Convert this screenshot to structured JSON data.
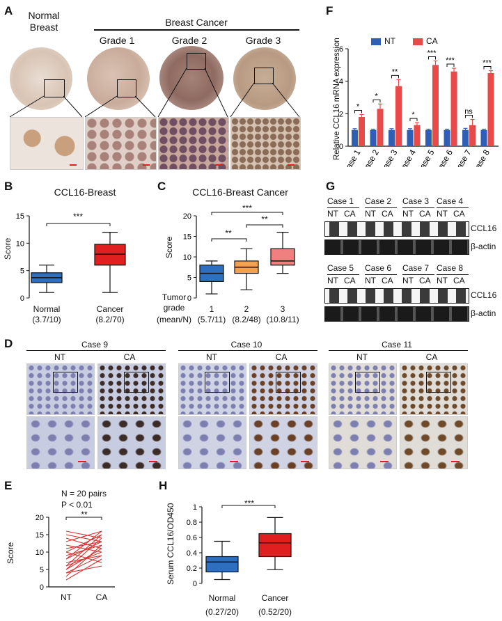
{
  "panels": {
    "A": "A",
    "B": "B",
    "C": "C",
    "D": "D",
    "E": "E",
    "F": "F",
    "G": "G",
    "H": "H"
  },
  "panelA": {
    "normal_label_1": "Normal",
    "normal_label_2": "Breast",
    "group_label": "Breast Cancer",
    "grades": [
      "Grade 1",
      "Grade 2",
      "Grade 3"
    ]
  },
  "panelB": {
    "title": "CCL16-Breast",
    "ylabel": "Score",
    "sig": "***",
    "groups": [
      {
        "name": "Normal",
        "sub": "(3.7/10)"
      },
      {
        "name": "Cancer",
        "sub": "(8.2/70)"
      }
    ]
  },
  "panelC": {
    "title": "CCL16-Breast Cancer",
    "ylabel": "Score",
    "row_label_1": "Tumor",
    "row_label_2": "grade",
    "row_label_3": "(mean/N)",
    "sig_top": "***",
    "sig_12": "**",
    "sig_23": "**",
    "groups": [
      {
        "name": "1",
        "sub": "(5.7/11)"
      },
      {
        "name": "2",
        "sub": "(8.2/48)"
      },
      {
        "name": "3",
        "sub": "(10.8/11)"
      }
    ]
  },
  "panelD": {
    "cases": [
      {
        "name": "Case 9",
        "nt": "NT",
        "ca": "CA"
      },
      {
        "name": "Case 10",
        "nt": "NT",
        "ca": "CA"
      },
      {
        "name": "Case 11",
        "nt": "NT",
        "ca": "CA"
      }
    ]
  },
  "panelE": {
    "ylabel": "Score",
    "n_text": "N = 20 pairs",
    "p_text": "P < 0.01",
    "sig": "**",
    "xlabels": [
      "NT",
      "CA"
    ]
  },
  "panelF": {
    "ylabel": "Relative CCL16 mRNA expression",
    "legend": [
      "NT",
      "CA"
    ]
  },
  "panelG": {
    "cases_top": [
      "Case 1",
      "Case 2",
      "Case 3",
      "Case 4"
    ],
    "cases_bottom": [
      "Case 5",
      "Case 6",
      "Case 7",
      "Case 8"
    ],
    "lane_labels": [
      "NT",
      "CA"
    ],
    "band_labels": [
      "CCL16",
      "β-actin"
    ]
  },
  "panelH": {
    "ylabel": "Serum CCL16/OD450",
    "sig": "***",
    "groups": [
      {
        "name": "Normal",
        "sub": "(0.27/20)"
      },
      {
        "name": "Cancer",
        "sub": "(0.52/20)"
      }
    ]
  },
  "chart_data": [
    {
      "id": "B",
      "type": "box",
      "title": "CCL16-Breast",
      "ylabel": "Score",
      "ylim": [
        0,
        15
      ],
      "yticks": [
        0,
        5,
        10,
        15
      ],
      "categories": [
        "Normal",
        "Cancer"
      ],
      "boxes": [
        {
          "min": 1,
          "q1": 2.8,
          "median": 3.7,
          "q3": 4.6,
          "max": 6,
          "color": "#2e6fbf"
        },
        {
          "min": 1,
          "q1": 6,
          "median": 8,
          "q3": 9.8,
          "max": 12,
          "color": "#e02020"
        }
      ]
    },
    {
      "id": "C",
      "type": "box",
      "title": "CCL16-Breast Cancer",
      "ylabel": "Score",
      "ylim": [
        0,
        20
      ],
      "yticks": [
        0,
        5,
        10,
        15,
        20
      ],
      "categories": [
        "1",
        "2",
        "3"
      ],
      "boxes": [
        {
          "min": 1,
          "q1": 4,
          "median": 6,
          "q3": 8,
          "max": 9,
          "color": "#2e6fbf"
        },
        {
          "min": 2,
          "q1": 6,
          "median": 7.5,
          "q3": 9,
          "max": 12,
          "color": "#f5a04a"
        },
        {
          "min": 6,
          "q1": 8,
          "median": 9,
          "q3": 12,
          "max": 16,
          "color": "#f08080"
        }
      ]
    },
    {
      "id": "E",
      "type": "line",
      "ylabel": "Score",
      "ylim": [
        0,
        20
      ],
      "yticks": [
        0,
        5,
        10,
        15,
        20
      ],
      "x": [
        "NT",
        "CA"
      ],
      "pairs": [
        [
          2,
          8
        ],
        [
          3,
          12
        ],
        [
          4,
          6
        ],
        [
          5,
          11
        ],
        [
          5,
          14
        ],
        [
          6,
          10
        ],
        [
          6,
          15
        ],
        [
          7,
          9
        ],
        [
          8,
          13
        ],
        [
          8,
          16
        ],
        [
          9,
          12
        ],
        [
          10,
          7
        ],
        [
          10,
          15
        ],
        [
          11,
          13
        ],
        [
          12,
          10
        ],
        [
          13,
          16
        ],
        [
          14,
          11
        ],
        [
          15,
          13
        ],
        [
          16,
          14
        ],
        [
          4,
          9
        ]
      ]
    },
    {
      "id": "F",
      "type": "bar",
      "ylabel": "Relative CCL16 mRNA expression",
      "ylim": [
        0,
        6
      ],
      "yticks": [
        0,
        2,
        4,
        6
      ],
      "categories": [
        "Case 1",
        "Case 2",
        "Case 3",
        "Case 4",
        "Case 5",
        "Case 6",
        "Case 7",
        "Case 8"
      ],
      "series": [
        {
          "name": "NT",
          "values": [
            1,
            1,
            1,
            1,
            1,
            1,
            1,
            1
          ],
          "errors": [
            0.08,
            0.05,
            0.08,
            0.08,
            0.05,
            0.05,
            0.1,
            0.05
          ],
          "color": "#2e5fb5"
        },
        {
          "name": "CA",
          "values": [
            1.8,
            2.3,
            3.7,
            1.3,
            5.0,
            4.6,
            1.3,
            4.5
          ],
          "errors": [
            0.15,
            0.3,
            0.4,
            0.15,
            0.25,
            0.2,
            0.35,
            0.15
          ],
          "color": "#e84a4a"
        }
      ],
      "significance": [
        "*",
        "*",
        "**",
        "*",
        "***",
        "***",
        "ns",
        "***"
      ]
    },
    {
      "id": "H",
      "type": "box",
      "ylabel": "Serum CCL16/OD450",
      "ylim": [
        0,
        1.0
      ],
      "yticks": [
        0.0,
        0.2,
        0.4,
        0.6,
        0.8,
        1.0
      ],
      "categories": [
        "Normal",
        "Cancer"
      ],
      "boxes": [
        {
          "min": 0.05,
          "q1": 0.15,
          "median": 0.28,
          "q3": 0.35,
          "max": 0.55,
          "color": "#2e6fbf"
        },
        {
          "min": 0.18,
          "q1": 0.35,
          "median": 0.53,
          "q3": 0.65,
          "max": 0.86,
          "color": "#e02020"
        }
      ]
    }
  ]
}
